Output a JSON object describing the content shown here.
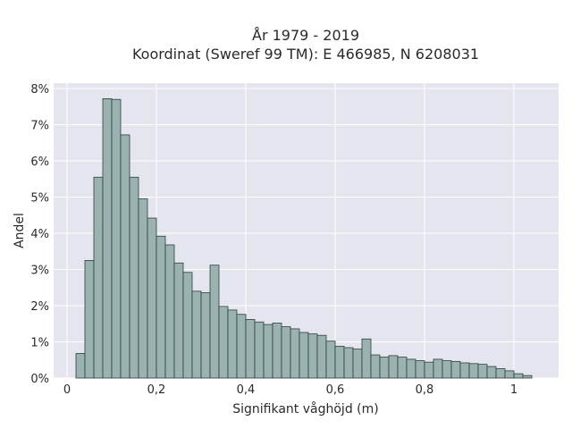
{
  "chart_data": {
    "type": "bar",
    "title_line1": "År 1979 - 2019",
    "title_line2": "Koordinat (Sweref 99 TM): E 466985, N 6208031",
    "xlabel": "Signifikant våghöjd (m)",
    "ylabel": "Andel",
    "xlim": [
      -0.03,
      1.1
    ],
    "ylim": [
      0,
      8.15
    ],
    "x_ticks": [
      {
        "value": 0,
        "label": "0"
      },
      {
        "value": 0.2,
        "label": "0,2"
      },
      {
        "value": 0.4,
        "label": "0,4"
      },
      {
        "value": 0.6,
        "label": "0,6"
      },
      {
        "value": 0.8,
        "label": "0,8"
      },
      {
        "value": 1.0,
        "label": "1"
      }
    ],
    "y_ticks": [
      {
        "value": 0,
        "label": "0%"
      },
      {
        "value": 1,
        "label": "1%"
      },
      {
        "value": 2,
        "label": "2%"
      },
      {
        "value": 3,
        "label": "3%"
      },
      {
        "value": 4,
        "label": "4%"
      },
      {
        "value": 5,
        "label": "5%"
      },
      {
        "value": 6,
        "label": "6%"
      },
      {
        "value": 7,
        "label": "7%"
      },
      {
        "value": 8,
        "label": "8%"
      }
    ],
    "bin_width": 0.02,
    "bin_starts": [
      0.02,
      0.04,
      0.06,
      0.08,
      0.1,
      0.12,
      0.14,
      0.16,
      0.18,
      0.2,
      0.22,
      0.24,
      0.26,
      0.28,
      0.3,
      0.32,
      0.34,
      0.36,
      0.38,
      0.4,
      0.42,
      0.44,
      0.46,
      0.48,
      0.5,
      0.52,
      0.54,
      0.56,
      0.58,
      0.6,
      0.62,
      0.64,
      0.66,
      0.68,
      0.7,
      0.72,
      0.74,
      0.76,
      0.78,
      0.8,
      0.82,
      0.84,
      0.86,
      0.88,
      0.9,
      0.92,
      0.94,
      0.96,
      0.98,
      1.0,
      1.02
    ],
    "values": [
      0.68,
      3.25,
      5.55,
      7.72,
      7.7,
      6.72,
      5.55,
      4.95,
      4.42,
      3.92,
      3.68,
      3.18,
      2.92,
      2.4,
      2.36,
      3.12,
      1.98,
      1.88,
      1.76,
      1.62,
      1.55,
      1.48,
      1.52,
      1.42,
      1.36,
      1.26,
      1.22,
      1.18,
      1.02,
      0.88,
      0.84,
      0.8,
      1.08,
      0.64,
      0.58,
      0.62,
      0.58,
      0.52,
      0.48,
      0.44,
      0.52,
      0.48,
      0.46,
      0.42,
      0.4,
      0.38,
      0.32,
      0.26,
      0.2,
      0.12,
      0.07
    ],
    "colors": {
      "plot_background": "#e5e5ef",
      "grid": "#ffffff",
      "bar_fill": "#9ab3b1",
      "bar_stroke": "#2f3f3d"
    }
  }
}
